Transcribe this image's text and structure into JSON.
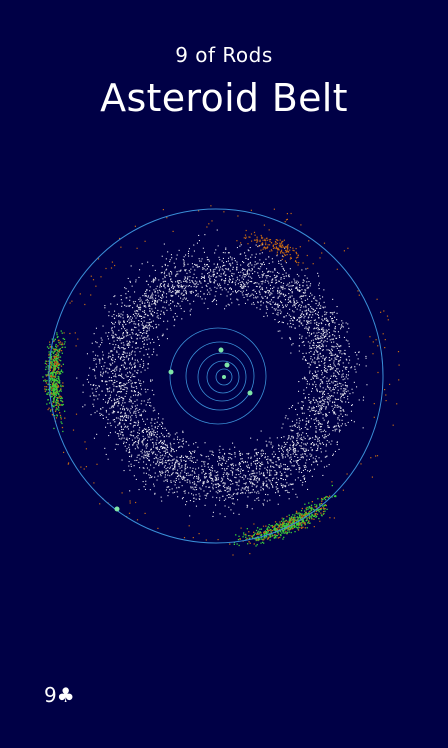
{
  "card": {
    "subtitle": "9 of Rods",
    "title": "Asteroid Belt",
    "corner_label": "9♣"
  },
  "colors": {
    "background": "#000046",
    "orbit": "#3a8fd8",
    "belt": "#e8e8f0",
    "trojan_green": "#3bd13b",
    "trojan_orange": "#c86a12",
    "planet": "#7fe6a8"
  }
}
